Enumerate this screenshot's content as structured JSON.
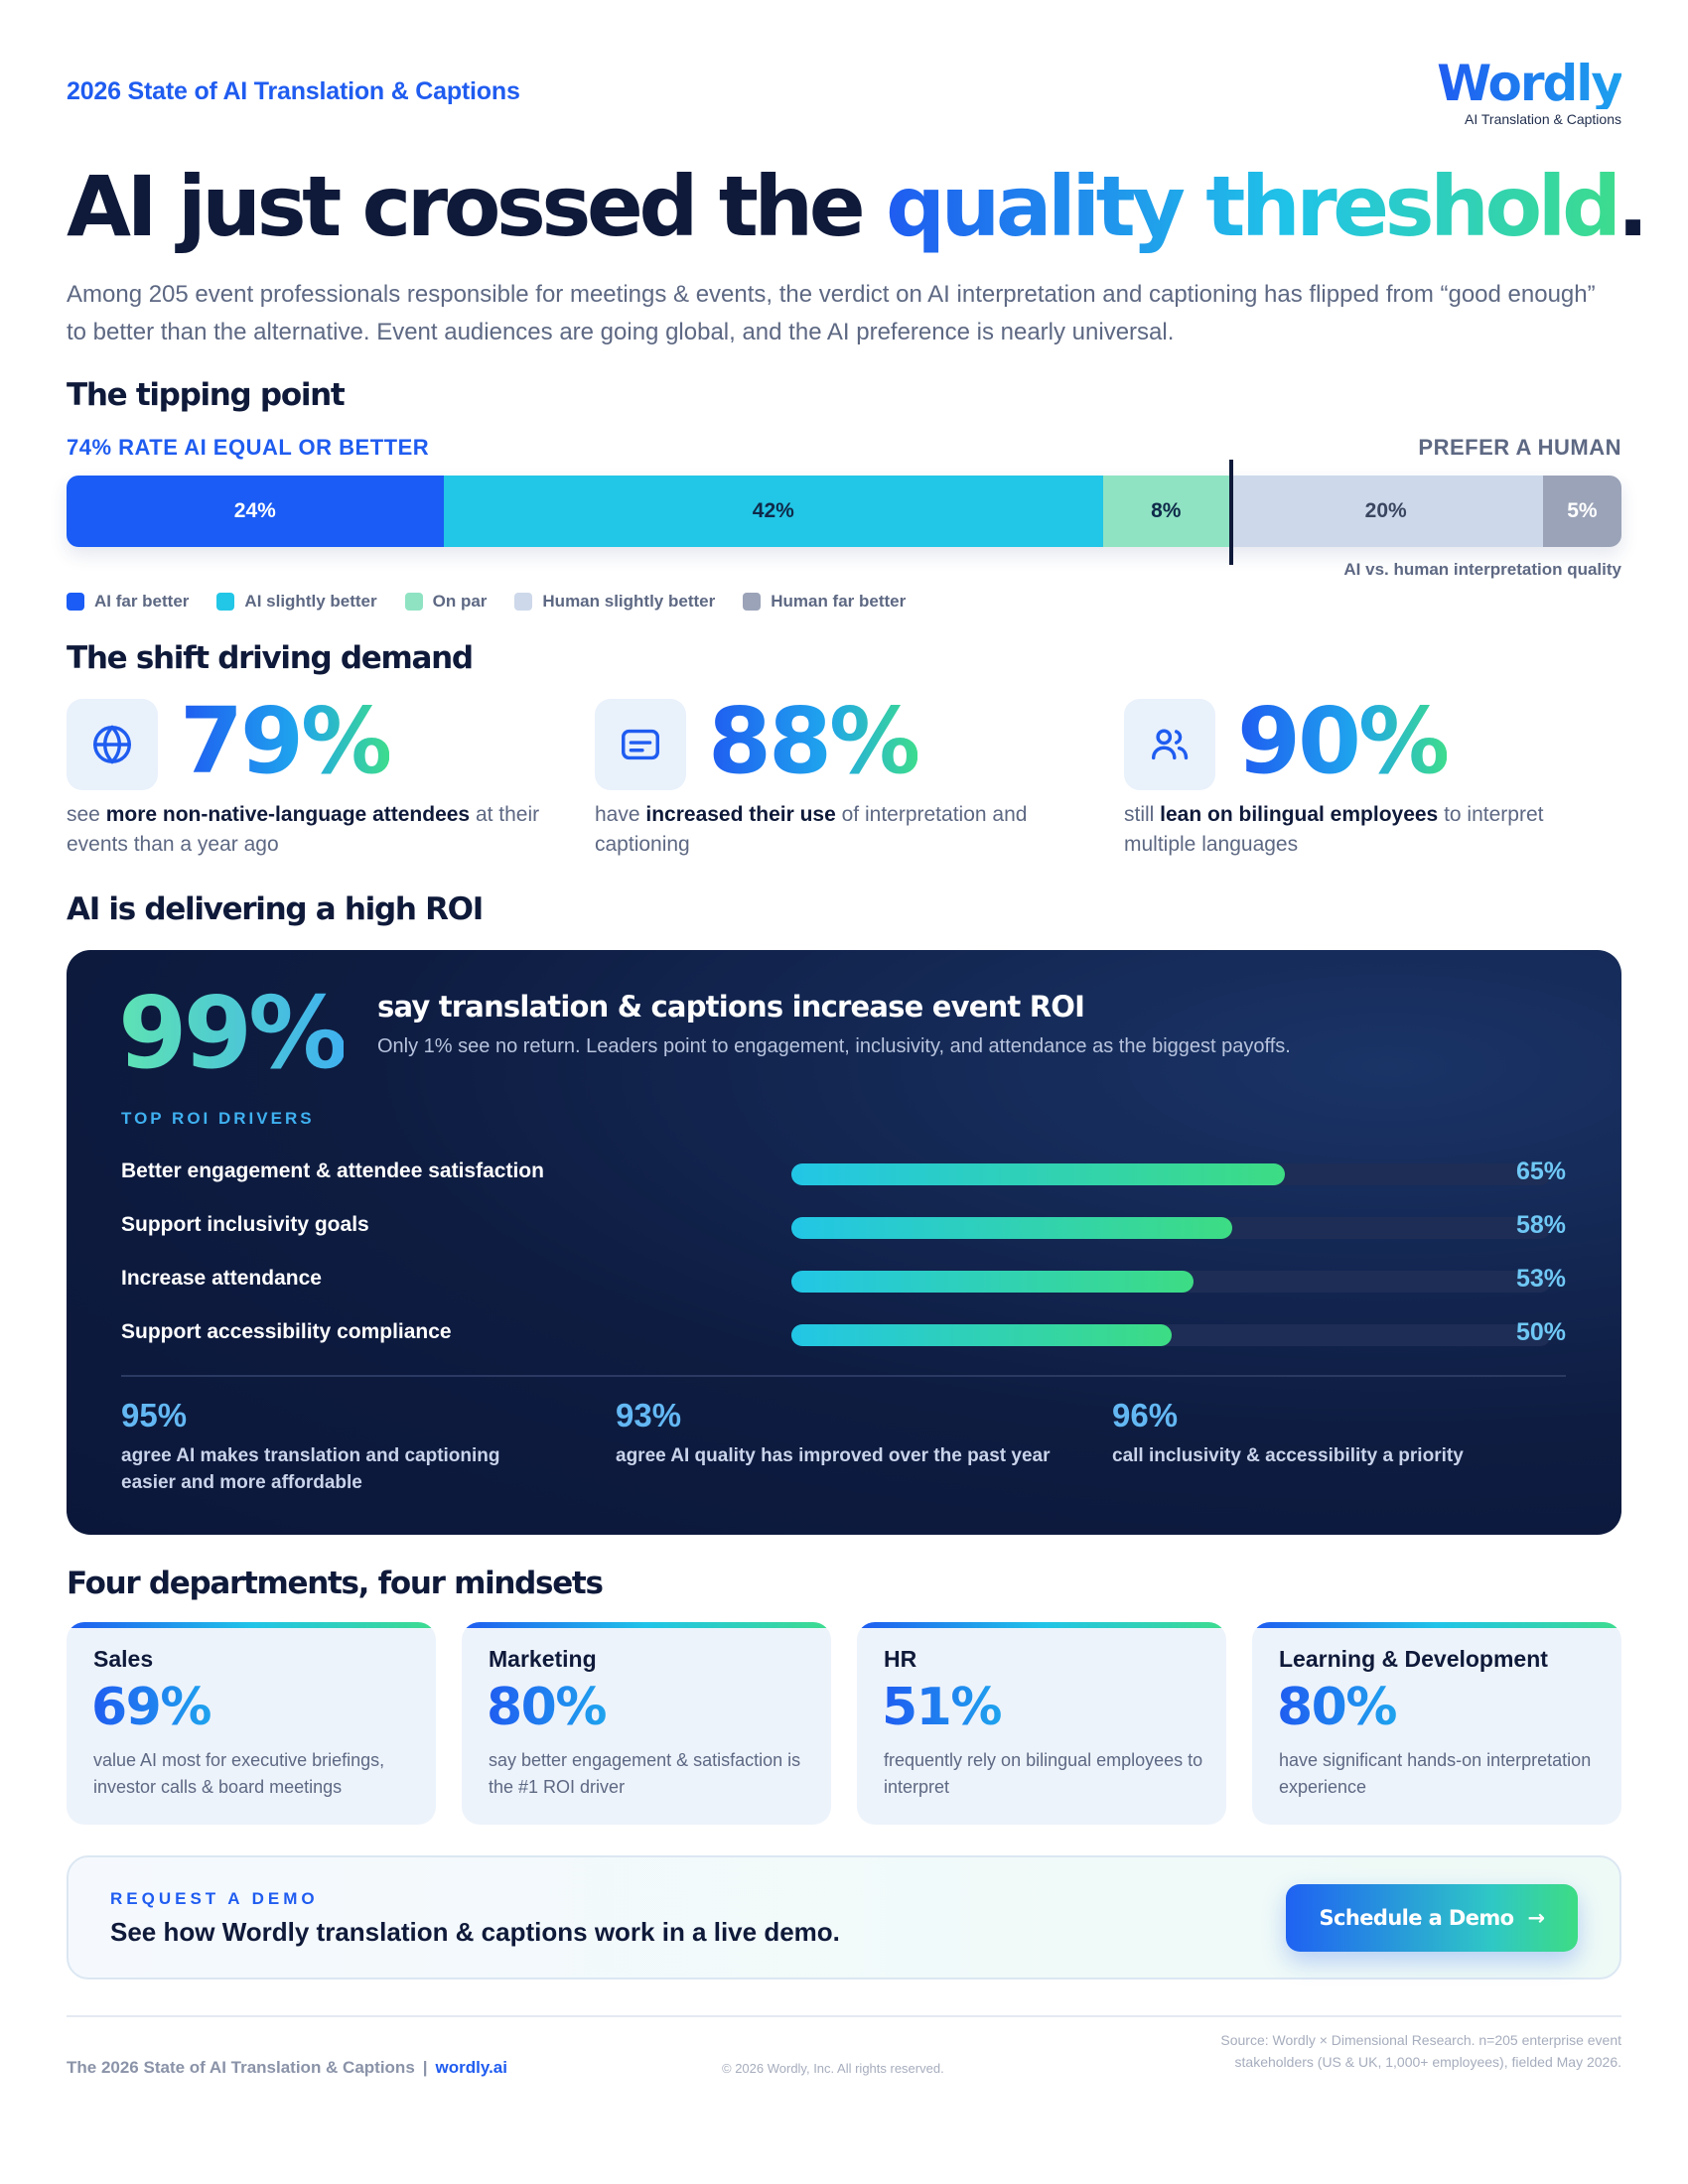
{
  "header": {
    "report_title": "2026 State of AI Translation & Captions",
    "logo_word": "Wordly",
    "logo_sub": "AI Translation & Captions"
  },
  "headline": {
    "part1": "AI just crossed the ",
    "highlight": "quality threshold",
    "end": "."
  },
  "intro": "Among 205 event professionals responsible for meetings & events, the verdict on AI interpretation and captioning has flipped from “good enough” to better than the alternative. Event audiences are going global, and the AI preference is nearly universal.",
  "tipping_point": {
    "title": "The tipping point",
    "left_label": "74% RATE AI EQUAL OR BETTER",
    "right_label": "PREFER A HUMAN",
    "caption": "AI vs. human interpretation quality",
    "segments": [
      {
        "label": "AI far better",
        "value": 24,
        "text": "24%",
        "color": "#1a5cf5",
        "text_color": "#ffffff"
      },
      {
        "label": "AI slightly better",
        "value": 42,
        "text": "42%",
        "color": "#22c6e6",
        "text_color": "#0f2a4a"
      },
      {
        "label": "On par",
        "value": 8,
        "text": "8%",
        "color": "#8fe3c3",
        "text_color": "#0f2a4a"
      },
      {
        "label": "Human slightly better",
        "value": 20,
        "text": "20%",
        "color": "#cdd8ea",
        "text_color": "#3a4660"
      },
      {
        "label": "Human far better",
        "value": 5,
        "text": "5%",
        "color": "#9aa3b8",
        "text_color": "#ffffff"
      }
    ]
  },
  "shift": {
    "title": "The shift driving demand",
    "cards": [
      {
        "icon": "globe-icon",
        "stat": "79%",
        "pre": "see ",
        "bold": "more non-native-language attendees",
        "post": " at their events than a year ago"
      },
      {
        "icon": "captions-icon",
        "stat": "88%",
        "pre": "have ",
        "bold": "increased their use",
        "post": " of interpretation and captioning"
      },
      {
        "icon": "people-icon",
        "stat": "90%",
        "pre": "still ",
        "bold": "lean on bilingual employees",
        "post": " to interpret multiple languages"
      }
    ]
  },
  "roi": {
    "title": "AI is delivering a high ROI",
    "big_stat": "99%",
    "headline": "say translation & captions increase event ROI",
    "sub": "Only 1% see no return. Leaders point to engagement, inclusivity, and attendance as the biggest payoffs.",
    "drivers_title": "TOP ROI DRIVERS",
    "drivers": [
      {
        "label": "Better engagement & attendee satisfaction",
        "value": 65,
        "text": "65%"
      },
      {
        "label": "Support inclusivity goals",
        "value": 58,
        "text": "58%"
      },
      {
        "label": "Increase attendance",
        "value": 53,
        "text": "53%"
      },
      {
        "label": "Support accessibility compliance",
        "value": 50,
        "text": "50%"
      }
    ],
    "stats": [
      {
        "num": "95%",
        "text": "agree AI makes translation and captioning easier and more affordable"
      },
      {
        "num": "93%",
        "text": "agree AI quality has improved over the past year"
      },
      {
        "num": "96%",
        "text": "call inclusivity & accessibility a priority"
      }
    ]
  },
  "departments": {
    "title": "Four departments, four mindsets",
    "items": [
      {
        "name": "Sales",
        "stat": "69%",
        "text": "value AI most for executive briefings, investor calls & board meetings"
      },
      {
        "name": "Marketing",
        "stat": "80%",
        "text": "say better engagement & satisfaction is the #1 ROI driver"
      },
      {
        "name": "HR",
        "stat": "51%",
        "text": "frequently rely on bilingual employees to interpret"
      },
      {
        "name": "Learning & Development",
        "stat": "80%",
        "text": "have significant hands-on interpretation experience"
      }
    ]
  },
  "cta": {
    "kicker": "REQUEST A DEMO",
    "line": "See how Wordly translation & captions work in a live demo.",
    "button": "Schedule a Demo",
    "arrow": "→"
  },
  "footer": {
    "left": "The 2026 State of AI Translation & Captions",
    "separator": "|",
    "site": "wordly.ai",
    "copyright": "© 2026 Wordly, Inc. All rights reserved.",
    "source": "Source: Wordly × Dimensional Research. n=205 enterprise event stakeholders (US & UK, 1,000+ employees), fielded May 2026."
  },
  "chart_data": [
    {
      "type": "bar",
      "stacked": true,
      "title": "",
      "categories": [
        "AI vs. human interpretation quality"
      ],
      "series": [
        {
          "name": "AI far better",
          "values": [
            24
          ]
        },
        {
          "name": "AI slightly better",
          "values": [
            42
          ]
        },
        {
          "name": "On par",
          "values": [
            8
          ]
        },
        {
          "name": "Human slightly better",
          "values": [
            20
          ]
        },
        {
          "name": "Human far better",
          "values": [
            5
          ]
        }
      ],
      "legend": "bottom-left"
    },
    {
      "type": "bar",
      "orientation": "horizontal",
      "title": "TOP ROI DRIVERS",
      "categories": [
        "Better engagement & attendee satisfaction",
        "Support inclusivity goals",
        "Increase attendance",
        "Support accessibility compliance"
      ],
      "values": [
        65,
        58,
        53,
        50
      ],
      "xlim": [
        0,
        100
      ]
    }
  ]
}
